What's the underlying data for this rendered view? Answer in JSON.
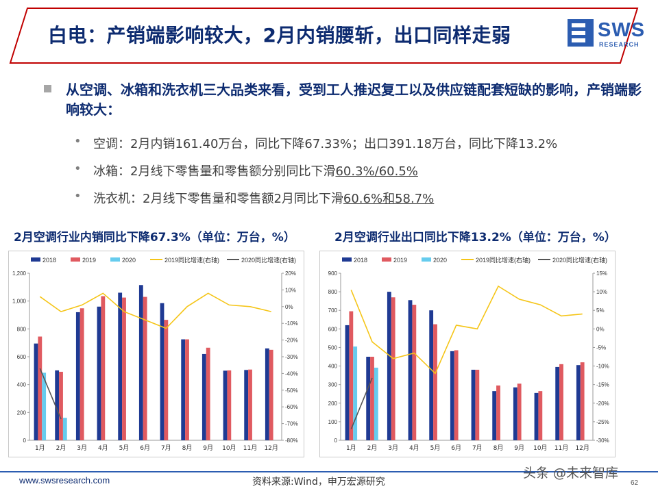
{
  "header": {
    "title": "白电：产销端影响较大，2月内销腰斩，出口同样走弱",
    "logo_text": "SWS",
    "logo_sub": "RESEARCH",
    "accent": "#c00000",
    "brand": "#2c5db1"
  },
  "lead": {
    "text": "从空调、冰箱和洗衣机三大品类来看，受到工人推迟复工以及供应链配套短缺的影响，产销端影响较大："
  },
  "bullets": [
    {
      "dot": "•",
      "text": "空调：2月内销161.40万台，同比下降67.33%；出口391.18万台，同比下降13.2%",
      "underlined": ""
    },
    {
      "dot": "•",
      "text": "冰箱：2月线下零售量和零售额分别同比下滑",
      "underlined": "60.3%/60.5%"
    },
    {
      "dot": "•",
      "text": "洗衣机：2月线下零售量和零售额2月同比下滑",
      "underlined": "60.6%和58.7%"
    }
  ],
  "chart_data": [
    {
      "type": "bar",
      "title": "2月空调行业内销同比下降67.3%（单位：万台，%）",
      "categories": [
        "1月",
        "2月",
        "3月",
        "4月",
        "5月",
        "6月",
        "7月",
        "8月",
        "9月",
        "10月",
        "11月",
        "12月"
      ],
      "ylim": [
        0,
        1200
      ],
      "yticks": [
        "0",
        "200",
        "400",
        "600",
        "800",
        "1,000",
        "1,200"
      ],
      "y2lim": [
        -80,
        20
      ],
      "y2ticks": [
        "-80%",
        "-70%",
        "-60%",
        "-50%",
        "-40%",
        "-30%",
        "-20%",
        "-10%",
        "0%",
        "10%",
        "20%"
      ],
      "series": [
        {
          "name": "2018",
          "kind": "bar",
          "color": "#1f3a93",
          "values": [
            695,
            502,
            920,
            960,
            1060,
            1115,
            985,
            725,
            620,
            500,
            505,
            660
          ]
        },
        {
          "name": "2019",
          "kind": "bar",
          "color": "#e05a60",
          "values": [
            745,
            492,
            948,
            1035,
            1025,
            1030,
            865,
            725,
            665,
            502,
            508,
            650
          ]
        },
        {
          "name": "2020",
          "kind": "bar",
          "color": "#66ccee",
          "values": [
            485,
            161.4,
            null,
            null,
            null,
            null,
            null,
            null,
            null,
            null,
            null,
            null
          ]
        },
        {
          "name": "2019同比增速(右轴)",
          "kind": "line",
          "color": "#f5c518",
          "axis": "right",
          "values": [
            6,
            -3,
            1,
            8,
            -3,
            -8,
            -13,
            0,
            8,
            1,
            0,
            -3
          ]
        },
        {
          "name": "2020同比增速(右轴)",
          "kind": "line",
          "color": "#555555",
          "axis": "right",
          "values": [
            -37,
            -67.3,
            null,
            null,
            null,
            null,
            null,
            null,
            null,
            null,
            null,
            null
          ]
        }
      ],
      "legend": "top"
    },
    {
      "type": "bar",
      "title": "2月空调行业出口同比下降13.2%（单位：万台，%）",
      "categories": [
        "1月",
        "2月",
        "3月",
        "4月",
        "5月",
        "6月",
        "7月",
        "8月",
        "9月",
        "10月",
        "11月",
        "12月"
      ],
      "ylim": [
        0,
        900
      ],
      "yticks": [
        "0",
        "100",
        "200",
        "300",
        "400",
        "500",
        "600",
        "700",
        "800",
        "900"
      ],
      "y2lim": [
        -30,
        15
      ],
      "y2ticks": [
        "-30%",
        "-25%",
        "-20%",
        "-15%",
        "-10%",
        "-5%",
        "0%",
        "5%",
        "10%",
        "15%"
      ],
      "series": [
        {
          "name": "2018",
          "kind": "bar",
          "color": "#1f3a93",
          "values": [
            620,
            450,
            800,
            755,
            700,
            480,
            380,
            265,
            285,
            255,
            395,
            405
          ]
        },
        {
          "name": "2019",
          "kind": "bar",
          "color": "#e05a60",
          "values": [
            695,
            450,
            770,
            730,
            625,
            485,
            380,
            295,
            305,
            265,
            410,
            420
          ]
        },
        {
          "name": "2020",
          "kind": "bar",
          "color": "#66ccee",
          "values": [
            505,
            391.18,
            null,
            null,
            null,
            null,
            null,
            null,
            null,
            null,
            null,
            null
          ]
        },
        {
          "name": "2019同比增速(右轴)",
          "kind": "line",
          "color": "#f5c518",
          "axis": "right",
          "values": [
            10.5,
            -3.5,
            -8,
            -6.5,
            -12,
            1,
            0,
            11.5,
            8,
            6.5,
            3.5,
            4
          ]
        },
        {
          "name": "2020同比增速(右轴)",
          "kind": "line",
          "color": "#555555",
          "axis": "right",
          "values": [
            -27,
            -13.2,
            null,
            null,
            null,
            null,
            null,
            null,
            null,
            null,
            null,
            null
          ]
        }
      ],
      "legend": "top"
    }
  ],
  "footer": {
    "url": "www.swsresearch.com",
    "source": "资料来源:Wind，申万宏源研究",
    "brand": "头条 @未来智库",
    "page": "62"
  }
}
